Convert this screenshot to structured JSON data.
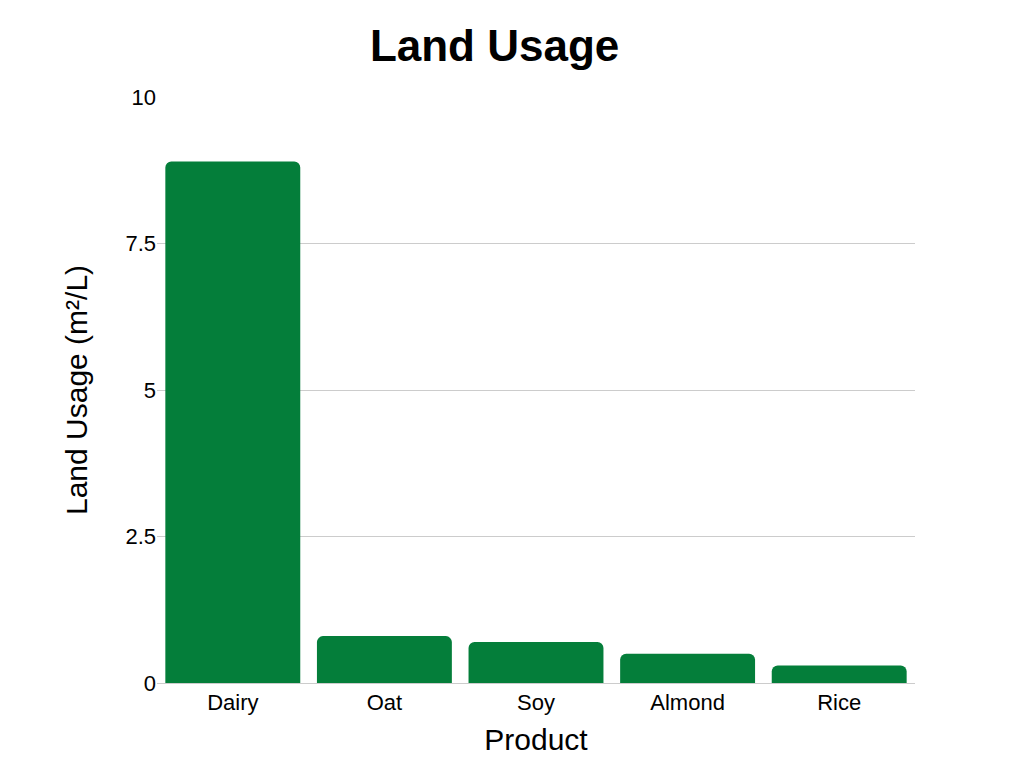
{
  "chart_data": {
    "type": "bar",
    "title": "Land Usage",
    "x_label": "Product",
    "y_label": "Land Usage (m²/L)",
    "categories": [
      "Dairy",
      "Oat",
      "Soy",
      "Almond",
      "Rice"
    ],
    "values": [
      8.9,
      0.8,
      0.7,
      0.5,
      0.3
    ],
    "color": "#047e3a",
    "ylim": [
      0,
      10
    ],
    "yticks": [
      0,
      2.5,
      5,
      7.5,
      10
    ],
    "grid": true
  }
}
